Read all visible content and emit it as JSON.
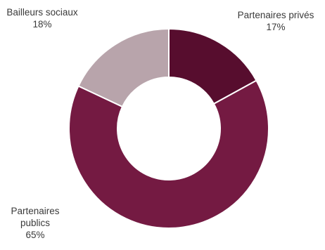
{
  "chart_data": {
    "type": "pie",
    "donut": true,
    "slices": [
      {
        "label_lines": [
          "Partenaires privés"
        ],
        "value": 17,
        "value_label": "17%",
        "color": "#570d2e"
      },
      {
        "label_lines": [
          "Partenaires",
          "publics"
        ],
        "value": 65,
        "value_label": "65%",
        "color": "#741a42"
      },
      {
        "label_lines": [
          "Bailleurs sociaux"
        ],
        "value": 18,
        "value_label": "18%",
        "color": "#b8a4ab"
      }
    ],
    "legend": "none"
  }
}
